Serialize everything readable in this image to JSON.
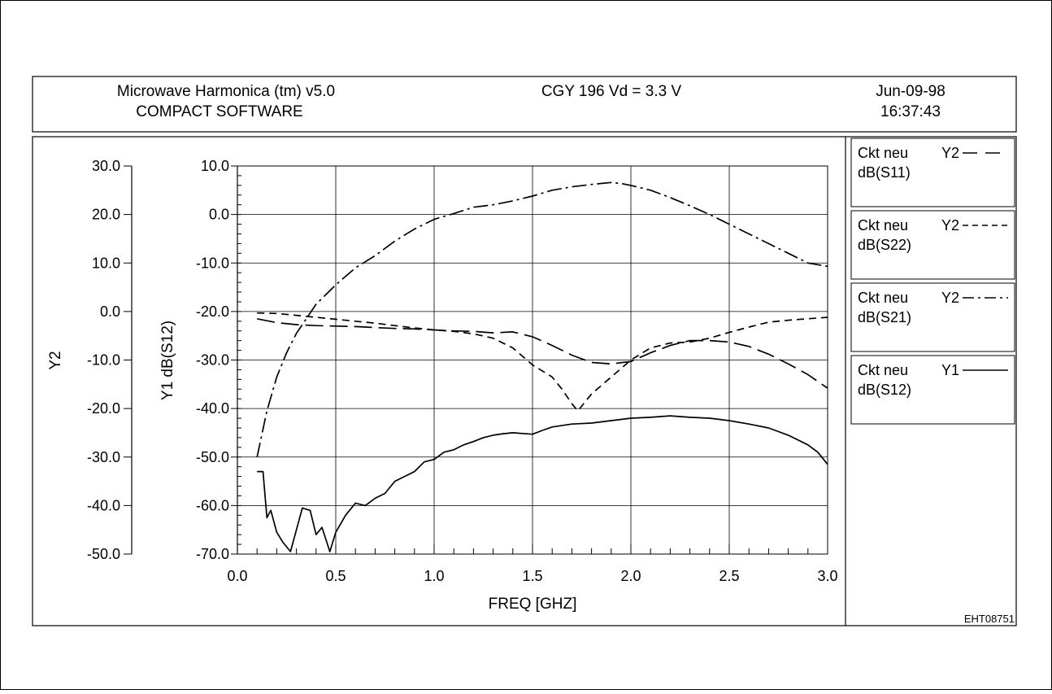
{
  "header": {
    "software": "Microwave Harmonica (tm) v5.0",
    "company": "COMPACT SOFTWARE",
    "title": "CGY 196   Vd = 3.3 V",
    "date": "Jun-09-98",
    "time": "16:37:43"
  },
  "footer_code": "EHT08751",
  "legend": [
    {
      "circuit": "Ckt neu",
      "measure": "dB(S11)",
      "axis": "Y2",
      "style": "long-dash"
    },
    {
      "circuit": "Ckt neu",
      "measure": "dB(S22)",
      "axis": "Y2",
      "style": "short-dash"
    },
    {
      "circuit": "Ckt neu",
      "measure": "dB(S21)",
      "axis": "Y2",
      "style": "dash-dot"
    },
    {
      "circuit": "Ckt neu",
      "measure": "dB(S12)",
      "axis": "Y1",
      "style": "solid"
    }
  ],
  "chart_data": {
    "type": "line",
    "xlabel": "FREQ [GHZ]",
    "y1label": "Y1 dB(S12)",
    "y2label": "Y2",
    "xlim": [
      0.0,
      3.0
    ],
    "y1lim": [
      -70.0,
      10.0
    ],
    "y2lim": [
      -50.0,
      30.0
    ],
    "x_ticks": [
      "0.0",
      "0.5",
      "1.0",
      "1.5",
      "2.0",
      "2.5",
      "3.0"
    ],
    "y1_ticks": [
      "-70.0",
      "-60.0",
      "-50.0",
      "-40.0",
      "-30.0",
      "-20.0",
      "-10.0",
      "0.0",
      "10.0"
    ],
    "y2_ticks": [
      "-50.0",
      "-40.0",
      "-30.0",
      "-20.0",
      "-10.0",
      "0.0",
      "10.0",
      "20.0",
      "30.0"
    ],
    "grid": true,
    "series": [
      {
        "name": "dB(S11)",
        "axis": "Y2",
        "style": "long-dash",
        "x": [
          0.1,
          0.2,
          0.3,
          0.4,
          0.5,
          0.6,
          0.7,
          0.8,
          0.9,
          1.0,
          1.1,
          1.2,
          1.3,
          1.4,
          1.5,
          1.6,
          1.7,
          1.8,
          1.9,
          2.0,
          2.1,
          2.2,
          2.3,
          2.4,
          2.5,
          2.6,
          2.7,
          2.8,
          2.9,
          3.0
        ],
        "y": [
          -1.5,
          -2.3,
          -2.7,
          -2.9,
          -3.0,
          -3.1,
          -3.3,
          -3.5,
          -3.6,
          -3.8,
          -4.0,
          -4.1,
          -4.4,
          -4.2,
          -5.2,
          -7.0,
          -9.0,
          -10.5,
          -10.8,
          -10.3,
          -8.5,
          -7.0,
          -6.0,
          -6.0,
          -6.3,
          -7.2,
          -8.8,
          -10.8,
          -13.0,
          -15.8
        ]
      },
      {
        "name": "dB(S22)",
        "axis": "Y2",
        "style": "short-dash",
        "x": [
          0.1,
          0.2,
          0.3,
          0.4,
          0.5,
          0.6,
          0.7,
          0.8,
          0.9,
          1.0,
          1.1,
          1.2,
          1.3,
          1.4,
          1.5,
          1.6,
          1.65,
          1.7,
          1.73,
          1.8,
          1.9,
          2.0,
          2.1,
          2.2,
          2.3,
          2.4,
          2.5,
          2.6,
          2.7,
          2.8,
          2.9,
          3.0
        ],
        "y": [
          -0.3,
          -0.4,
          -0.8,
          -1.2,
          -1.6,
          -2.0,
          -2.4,
          -2.9,
          -3.4,
          -3.8,
          -4.1,
          -4.6,
          -5.5,
          -7.5,
          -11.0,
          -13.5,
          -16.0,
          -19.0,
          -20.5,
          -17.0,
          -13.5,
          -10.0,
          -7.5,
          -6.5,
          -6.3,
          -5.5,
          -4.3,
          -3.2,
          -2.2,
          -1.8,
          -1.5,
          -1.2
        ]
      },
      {
        "name": "dB(S21)",
        "axis": "Y2",
        "style": "dash-dot",
        "x": [
          0.1,
          0.15,
          0.2,
          0.25,
          0.3,
          0.4,
          0.5,
          0.6,
          0.7,
          0.8,
          0.9,
          1.0,
          1.1,
          1.2,
          1.3,
          1.4,
          1.5,
          1.6,
          1.7,
          1.8,
          1.9,
          1.95,
          2.0,
          2.1,
          2.2,
          2.3,
          2.4,
          2.5,
          2.6,
          2.7,
          2.8,
          2.9,
          3.0
        ],
        "y": [
          -30.0,
          -20.5,
          -13.5,
          -8.5,
          -4.5,
          1.5,
          5.5,
          9.0,
          11.5,
          14.5,
          17.0,
          19.0,
          20.2,
          21.5,
          22.0,
          22.8,
          23.8,
          25.0,
          25.7,
          26.2,
          26.6,
          26.4,
          26.0,
          25.0,
          23.5,
          21.8,
          20.0,
          18.0,
          16.0,
          14.0,
          12.0,
          10.0,
          9.3
        ]
      },
      {
        "name": "dB(S12)",
        "axis": "Y1",
        "style": "solid",
        "x": [
          0.1,
          0.13,
          0.15,
          0.17,
          0.2,
          0.23,
          0.27,
          0.3,
          0.33,
          0.37,
          0.4,
          0.43,
          0.47,
          0.5,
          0.55,
          0.6,
          0.65,
          0.7,
          0.75,
          0.8,
          0.85,
          0.9,
          0.95,
          1.0,
          1.05,
          1.1,
          1.15,
          1.2,
          1.25,
          1.3,
          1.35,
          1.4,
          1.5,
          1.55,
          1.6,
          1.7,
          1.8,
          1.9,
          2.0,
          2.1,
          2.2,
          2.3,
          2.4,
          2.5,
          2.6,
          2.7,
          2.8,
          2.9,
          2.95,
          3.0
        ],
        "y": [
          -53.0,
          -53.0,
          -62.5,
          -61.0,
          -65.5,
          -67.5,
          -69.5,
          -65.0,
          -60.5,
          -61.0,
          -66.0,
          -64.5,
          -69.5,
          -65.5,
          -62.0,
          -59.5,
          -60.0,
          -58.5,
          -57.5,
          -55.0,
          -54.0,
          -53.0,
          -51.0,
          -50.5,
          -49.0,
          -48.5,
          -47.5,
          -46.8,
          -46.0,
          -45.5,
          -45.2,
          -45.0,
          -45.3,
          -44.5,
          -43.8,
          -43.2,
          -43.0,
          -42.5,
          -42.0,
          -41.8,
          -41.5,
          -41.8,
          -42.0,
          -42.5,
          -43.2,
          -44.0,
          -45.5,
          -47.5,
          -49.0,
          -51.5
        ]
      }
    ]
  }
}
